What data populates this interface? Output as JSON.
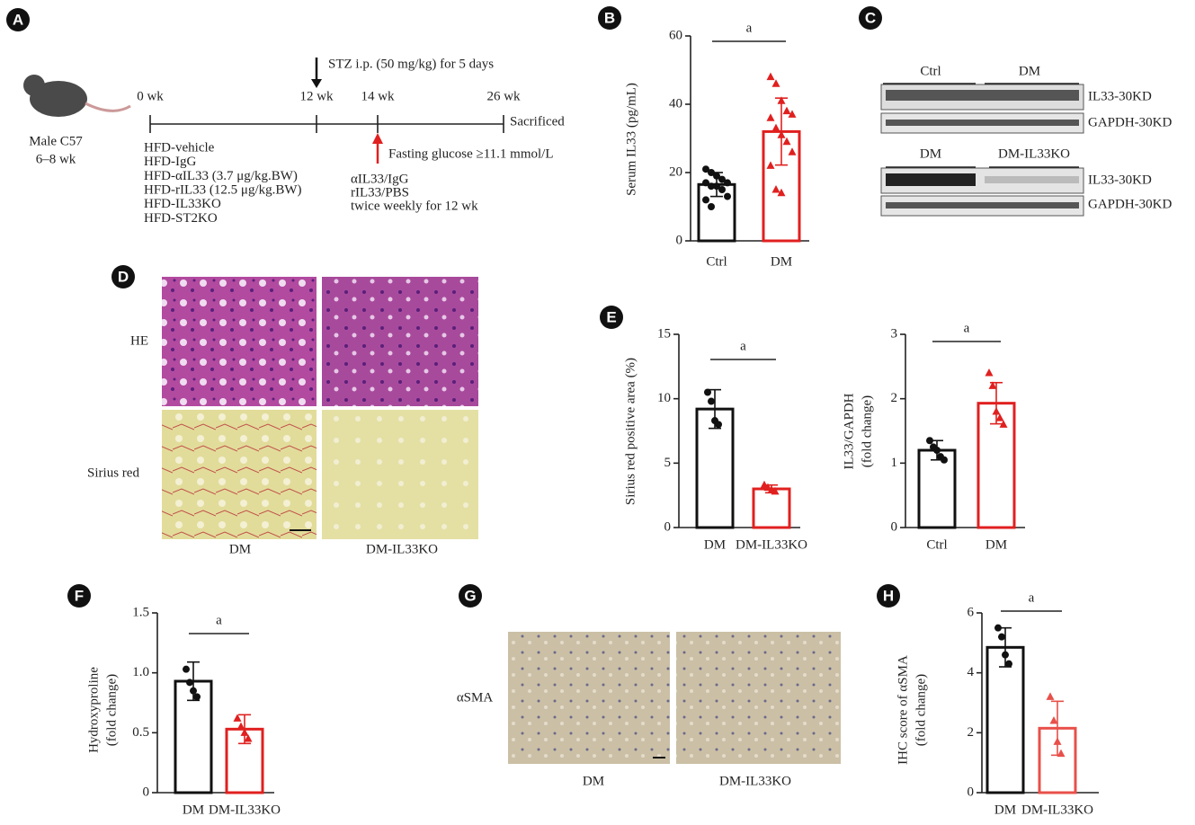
{
  "panels": [
    "A",
    "B",
    "C",
    "D",
    "E",
    "F",
    "G",
    "H"
  ],
  "timeline": {
    "mouse": [
      "Male C57",
      "6–8 wk"
    ],
    "ticks": [
      "0 wk",
      "12 wk",
      "14 wk",
      "26 wk"
    ],
    "end": "Sacrificed",
    "stz": "STZ i.p. (50 mg/kg) for 5 days",
    "glucose": "Fasting glucose ≥11.1 mmol/L",
    "groups": [
      "HFD-vehicle",
      "HFD-IgG",
      "HFD-αIL33 (3.7 μg/kg.BW)",
      "HFD-rIL33 (12.5 μg/kg.BW)",
      "HFD-IL33KO",
      "HFD-ST2KO"
    ],
    "treatment": [
      "αIL33/IgG",
      "rIL33/PBS",
      "twice weekly for 12 wk"
    ]
  },
  "blots": {
    "top_groups": [
      "Ctrl",
      "DM"
    ],
    "bottom_groups": [
      "DM",
      "DM-IL33KO"
    ],
    "bands": [
      "IL33-30KD",
      "GAPDH-30KD",
      "IL33-30KD",
      "GAPDH-30KD"
    ]
  },
  "histology": {
    "rows": [
      "HE",
      "Sirius red"
    ],
    "columns": [
      "DM",
      "DM-IL33KO"
    ]
  },
  "ihc": {
    "row": "αSMA",
    "columns": [
      "DM",
      "DM-IL33KO"
    ]
  },
  "chart_data": [
    {
      "type": "bar",
      "ylabel": [
        "Serum IL33 (pg/mL)"
      ],
      "categories": [
        "Ctrl",
        "DM"
      ],
      "values": [
        16.5,
        32
      ],
      "errors": [
        3.5,
        9.8
      ],
      "colors": [
        "#111111",
        "#e0201f"
      ],
      "markers": [
        "circle",
        "triangle"
      ],
      "points": [
        [
          21,
          20,
          19,
          18,
          17,
          17,
          16,
          16,
          15,
          13,
          12,
          10
        ],
        [
          48,
          46,
          41,
          38,
          37,
          36,
          33,
          31,
          29,
          26,
          22,
          15,
          14
        ]
      ],
      "annotation": "a",
      "ylim": [
        0,
        60
      ],
      "yticks": [
        0,
        20,
        40,
        60
      ]
    },
    {
      "type": "bar",
      "ylabel": [
        "Sirius red positive area (%)"
      ],
      "categories": [
        "DM",
        "DM-IL33KO"
      ],
      "values": [
        9.2,
        3.0
      ],
      "errors": [
        1.5,
        0.3
      ],
      "colors": [
        "#111111",
        "#e0201f"
      ],
      "markers": [
        "circle",
        "triangle"
      ],
      "points": [
        [
          10.5,
          9.8,
          8.3,
          8.0
        ],
        [
          3.3,
          3.1,
          2.9,
          2.8
        ]
      ],
      "annotation": "a",
      "ylim": [
        0,
        15
      ],
      "yticks": [
        0,
        5,
        10,
        15
      ]
    },
    {
      "type": "bar",
      "ylabel": [
        "IL33/GAPDH",
        "(fold change)"
      ],
      "categories": [
        "Ctrl",
        "DM"
      ],
      "values": [
        1.2,
        1.93
      ],
      "errors": [
        0.15,
        0.32
      ],
      "colors": [
        "#111111",
        "#e0201f"
      ],
      "markers": [
        "circle",
        "triangle"
      ],
      "points": [
        [
          1.35,
          1.25,
          1.2,
          1.1,
          1.05
        ],
        [
          2.4,
          2.2,
          1.8,
          1.7,
          1.6
        ]
      ],
      "annotation": "a",
      "ylim": [
        0,
        3
      ],
      "yticks": [
        0,
        1,
        2,
        3
      ]
    },
    {
      "type": "bar",
      "ylabel": [
        "Hydroxyproline",
        "(fold change)"
      ],
      "categories": [
        "DM",
        "DM-IL33KO"
      ],
      "values": [
        0.93,
        0.53
      ],
      "errors": [
        0.16,
        0.12
      ],
      "colors": [
        "#111111",
        "#e0201f"
      ],
      "markers": [
        "circle",
        "triangle"
      ],
      "points": [
        [
          1.03,
          0.92,
          0.85,
          0.8
        ],
        [
          0.62,
          0.55,
          0.5,
          0.45
        ]
      ],
      "annotation": "a",
      "ylim": [
        0,
        1.5
      ],
      "yticks": [
        0,
        0.5,
        {
          "value": 1,
          "label": "1.0"
        },
        1.5
      ]
    },
    {
      "type": "bar",
      "ylabel": [
        "IHC score of αSMA",
        "(fold change)"
      ],
      "categories": [
        "DM",
        "DM-IL33KO"
      ],
      "values": [
        4.85,
        2.15
      ],
      "errors": [
        0.65,
        0.9
      ],
      "colors": [
        "#111111",
        "#e8504a"
      ],
      "markers": [
        "circle",
        "triangle"
      ],
      "points": [
        [
          5.5,
          5.2,
          4.6,
          4.3
        ],
        [
          3.2,
          2.4,
          1.7,
          1.3
        ]
      ],
      "annotation": "a",
      "ylim": [
        0,
        6
      ],
      "yticks": [
        0,
        2,
        4,
        6
      ]
    }
  ]
}
